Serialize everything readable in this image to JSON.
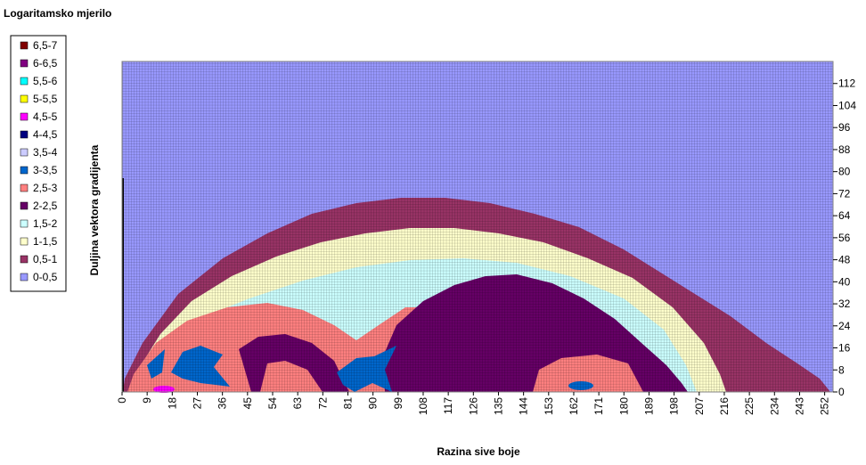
{
  "chart_data": {
    "type": "contour",
    "title": "Logaritamsko mjerilo",
    "x_label": "Razina sive boje",
    "y_label": "Duljina vektora gradijenta",
    "series": [
      {
        "name": "6,5-7",
        "color": "#800000"
      },
      {
        "name": "6-6,5",
        "color": "#800080"
      },
      {
        "name": "5,5-6",
        "color": "#00ffff"
      },
      {
        "name": "5-5,5",
        "color": "#ffff00"
      },
      {
        "name": "4,5-5",
        "color": "#ff00ff"
      },
      {
        "name": "4-4,5",
        "color": "#000080"
      },
      {
        "name": "3,5-4",
        "color": "#ccccff"
      },
      {
        "name": "3-3,5",
        "color": "#0066cc"
      },
      {
        "name": "2,5-3",
        "color": "#ff8080"
      },
      {
        "name": "2-2,5",
        "color": "#660066"
      },
      {
        "name": "1,5-2",
        "color": "#ccffff"
      },
      {
        "name": "1-1,5",
        "color": "#ffffcc"
      },
      {
        "name": "0,5-1",
        "color": "#993366"
      },
      {
        "name": "0-0,5",
        "color": "#9999ff"
      }
    ],
    "xlim": [
      0,
      255
    ],
    "xticks": [
      0,
      9,
      18,
      27,
      36,
      45,
      54,
      63,
      72,
      81,
      90,
      99,
      108,
      117,
      126,
      135,
      144,
      153,
      162,
      171,
      180,
      189,
      198,
      207,
      216,
      225,
      234,
      243,
      252
    ],
    "ylim": [
      0,
      120
    ],
    "yticks": [
      0,
      8,
      16,
      24,
      32,
      40,
      48,
      56,
      64,
      72,
      80,
      88,
      96,
      104,
      112
    ],
    "legend_position": "left"
  }
}
